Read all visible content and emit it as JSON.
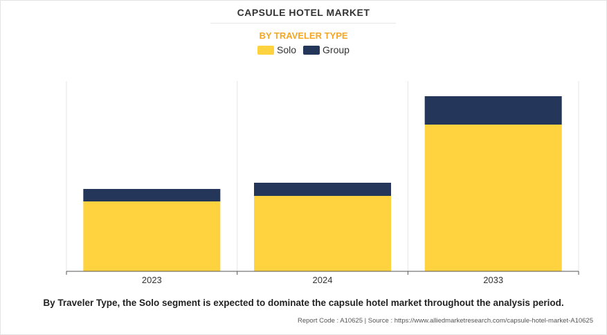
{
  "title": "CAPSULE HOTEL MARKET",
  "subtitle": "BY TRAVELER TYPE",
  "caption": "By Traveler Type, the Solo segment is expected to dominate the capsule hotel market throughout the analysis period.",
  "source": "Report Code : A10625  |  Source : https://www.alliedmarketresearch.com/capsule-hotel-market-A10625",
  "colors": {
    "solo": "#FFD23F",
    "group": "#24375A",
    "subtitle": "#F5A623"
  },
  "chart_data": {
    "type": "bar",
    "stacked": true,
    "categories": [
      "2023",
      "2024",
      "2033"
    ],
    "series": [
      {
        "name": "Solo",
        "values": [
          101,
          109,
          212
        ]
      },
      {
        "name": "Group",
        "values": [
          18,
          19,
          41
        ]
      }
    ],
    "ylim": [
      0,
      275
    ],
    "grid": "vertical",
    "legend": "top-center"
  }
}
